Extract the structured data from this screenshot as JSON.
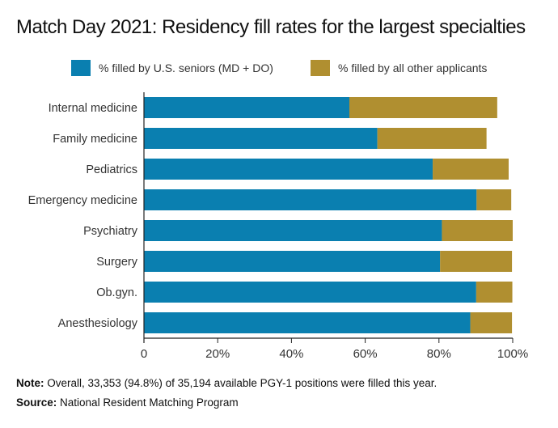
{
  "chart_data": {
    "type": "bar",
    "orientation": "horizontal",
    "stacked": true,
    "title": "Match Day 2021: Residency fill rates for the largest specialties",
    "categories": [
      "Internal medicine",
      "Family medicine",
      "Pediatrics",
      "Emergency medicine",
      "Psychiatry",
      "Surgery",
      "Ob.gyn.",
      "Anesthesiology"
    ],
    "series": [
      {
        "name": "% filled by U.S. seniors (MD + DO)",
        "color": "#0a7fb0",
        "values": [
          55.7,
          63.3,
          78.3,
          90.2,
          80.8,
          80.3,
          90.1,
          88.5
        ]
      },
      {
        "name": "% filled by all other applicants",
        "color": "#b08f30",
        "values": [
          40.1,
          29.6,
          20.6,
          9.4,
          19.2,
          19.5,
          9.8,
          11.3
        ]
      }
    ],
    "xlim": [
      0,
      100
    ],
    "xticks": [
      "0",
      "20%",
      "40%",
      "60%",
      "80%",
      "100%"
    ],
    "xtick_values": [
      0,
      20,
      40,
      60,
      80,
      100
    ],
    "legend_position": "top",
    "grid": false
  },
  "footer": {
    "note_label": "Note:",
    "note_text": "Overall, 33,353 (94.8%) of 35,194 available PGY-1 positions were filled this year.",
    "source_label": "Source:",
    "source_text": "National Resident Matching Program"
  }
}
